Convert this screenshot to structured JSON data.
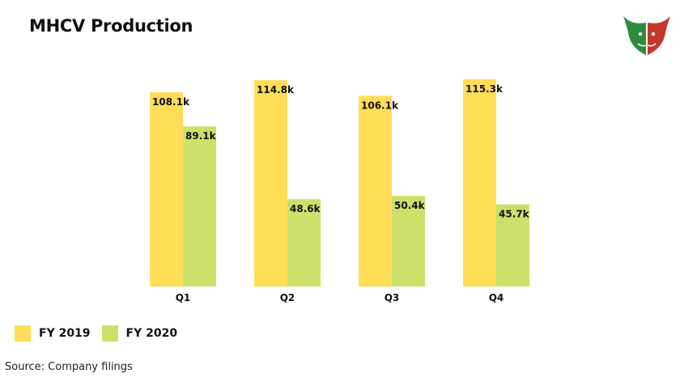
{
  "header": {
    "title": "MHCV Production"
  },
  "logo": {
    "icon": "bull-bear-logo-icon"
  },
  "chart_data": {
    "type": "bar",
    "title": "MHCV Production",
    "categories": [
      "Q1",
      "Q2",
      "Q3",
      "Q4"
    ],
    "series": [
      {
        "name": "FY 2019",
        "color": "#FFDD57",
        "values": [
          108.1,
          114.8,
          106.1,
          115.3
        ],
        "labels": [
          "108.1k",
          "114.8k",
          "106.1k",
          "115.3k"
        ]
      },
      {
        "name": "FY 2020",
        "color": "#CCE06B",
        "values": [
          89.1,
          48.6,
          50.4,
          45.7
        ],
        "labels": [
          "89.1k",
          "48.6k",
          "50.4k",
          "45.7k"
        ]
      }
    ],
    "xlabel": "",
    "ylabel": "",
    "ylim": [
      0,
      115.3
    ],
    "grid": false,
    "legend": "bottom-left"
  },
  "footer": {
    "source": "Source: Company filings"
  }
}
